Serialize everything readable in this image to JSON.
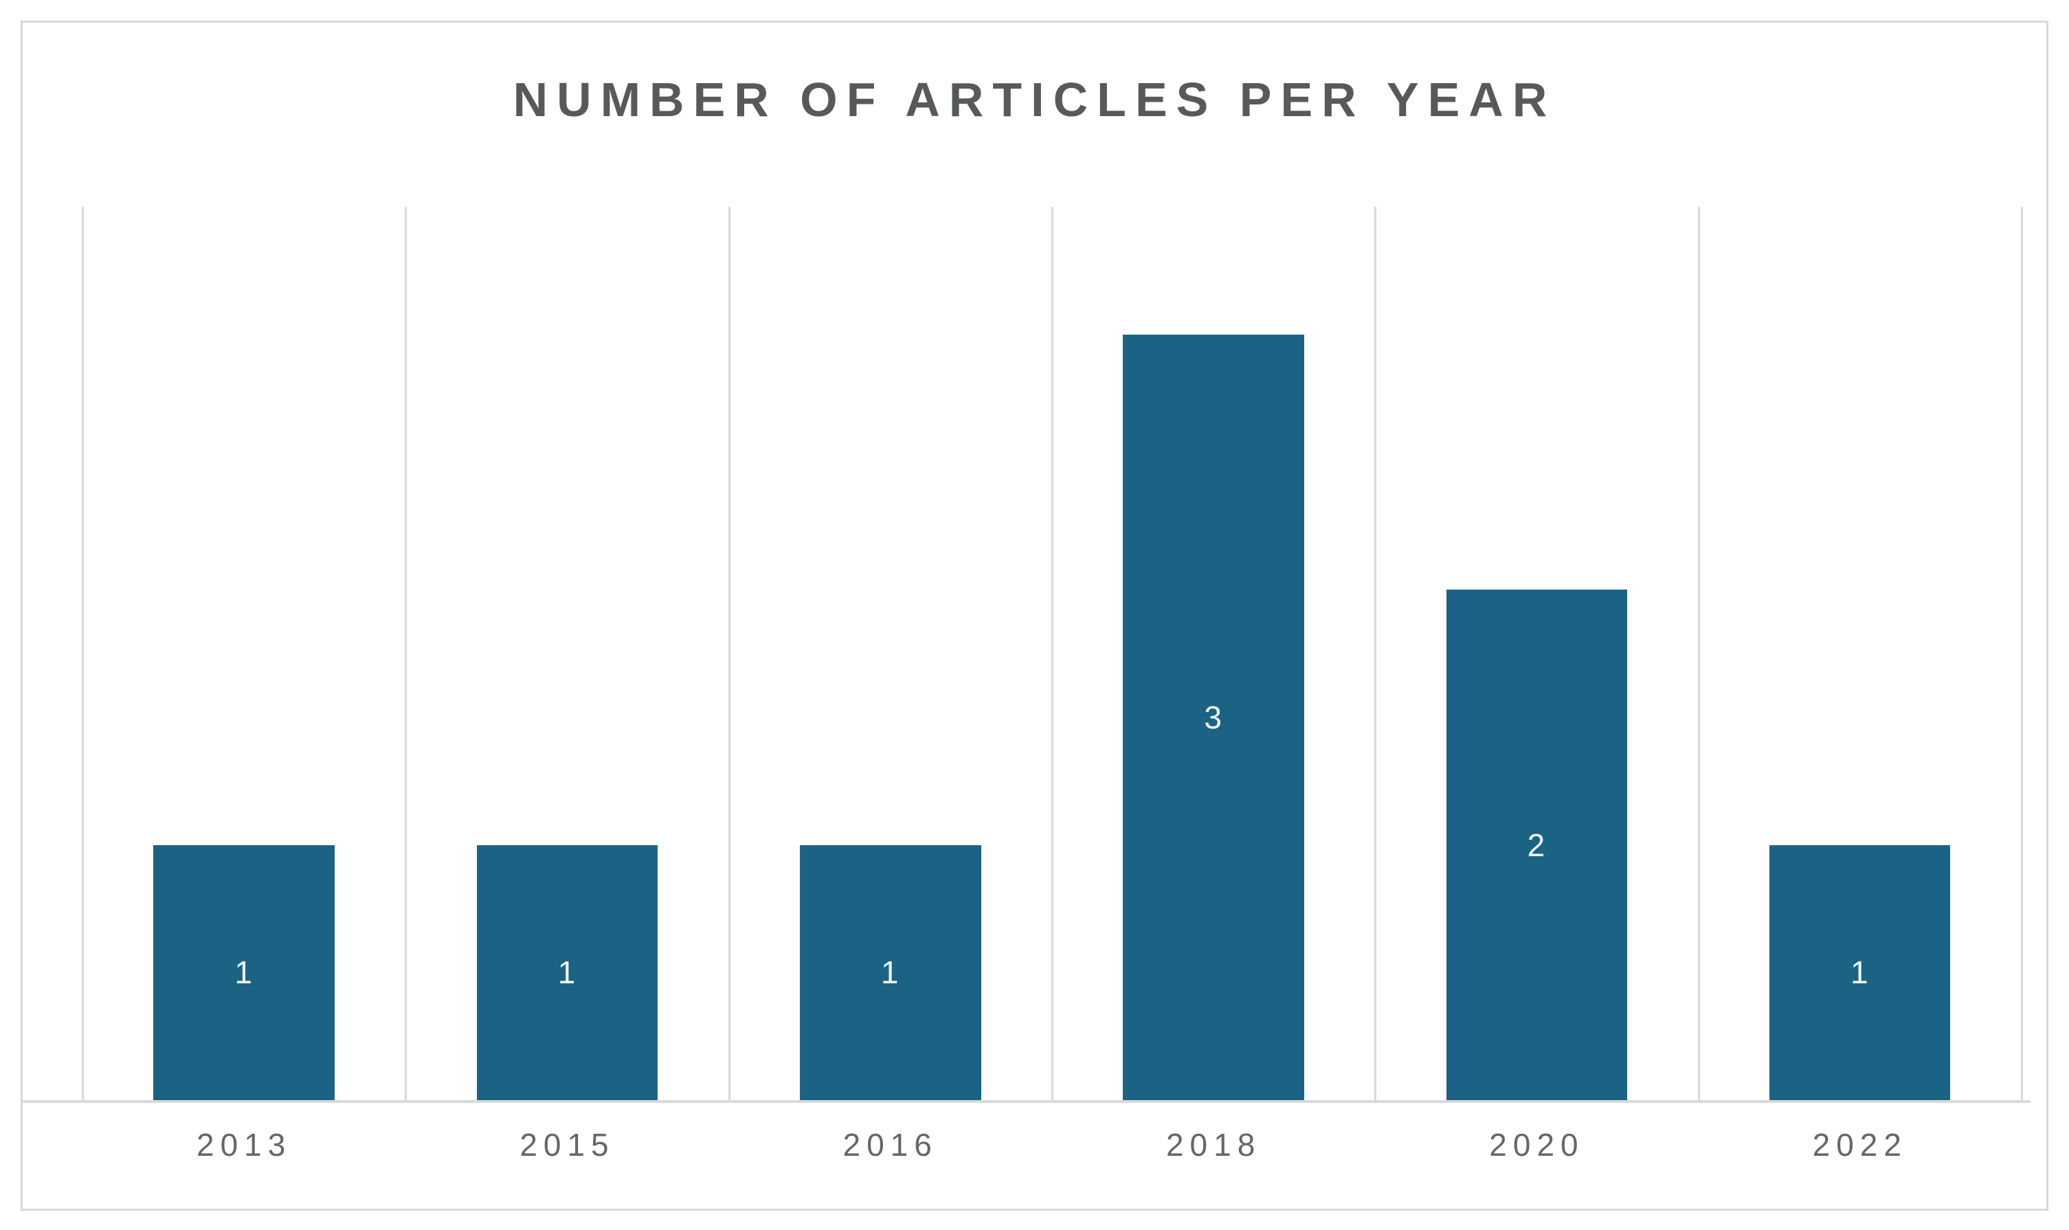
{
  "chart_data": {
    "type": "bar",
    "title": "NUMBER OF ARTICLES PER YEAR",
    "categories": [
      "2013",
      "2015",
      "2016",
      "2018",
      "2020",
      "2022"
    ],
    "values": [
      1,
      1,
      1,
      3,
      2,
      1
    ],
    "data_labels": [
      "1",
      "1",
      "1",
      "3",
      "2",
      "1"
    ],
    "xlabel": "",
    "ylabel": "",
    "ylim": [
      0,
      3.5
    ],
    "grid": "vertical category boundaries only",
    "legend_position": "none",
    "colors": {
      "bar": "#1b6384",
      "data_label": "#f5fafc",
      "title": "#58595b",
      "axis_label": "#666666",
      "gridline": "#d9d9d9",
      "frame_border": "#d9d9d9",
      "background": "#ffffff"
    }
  }
}
